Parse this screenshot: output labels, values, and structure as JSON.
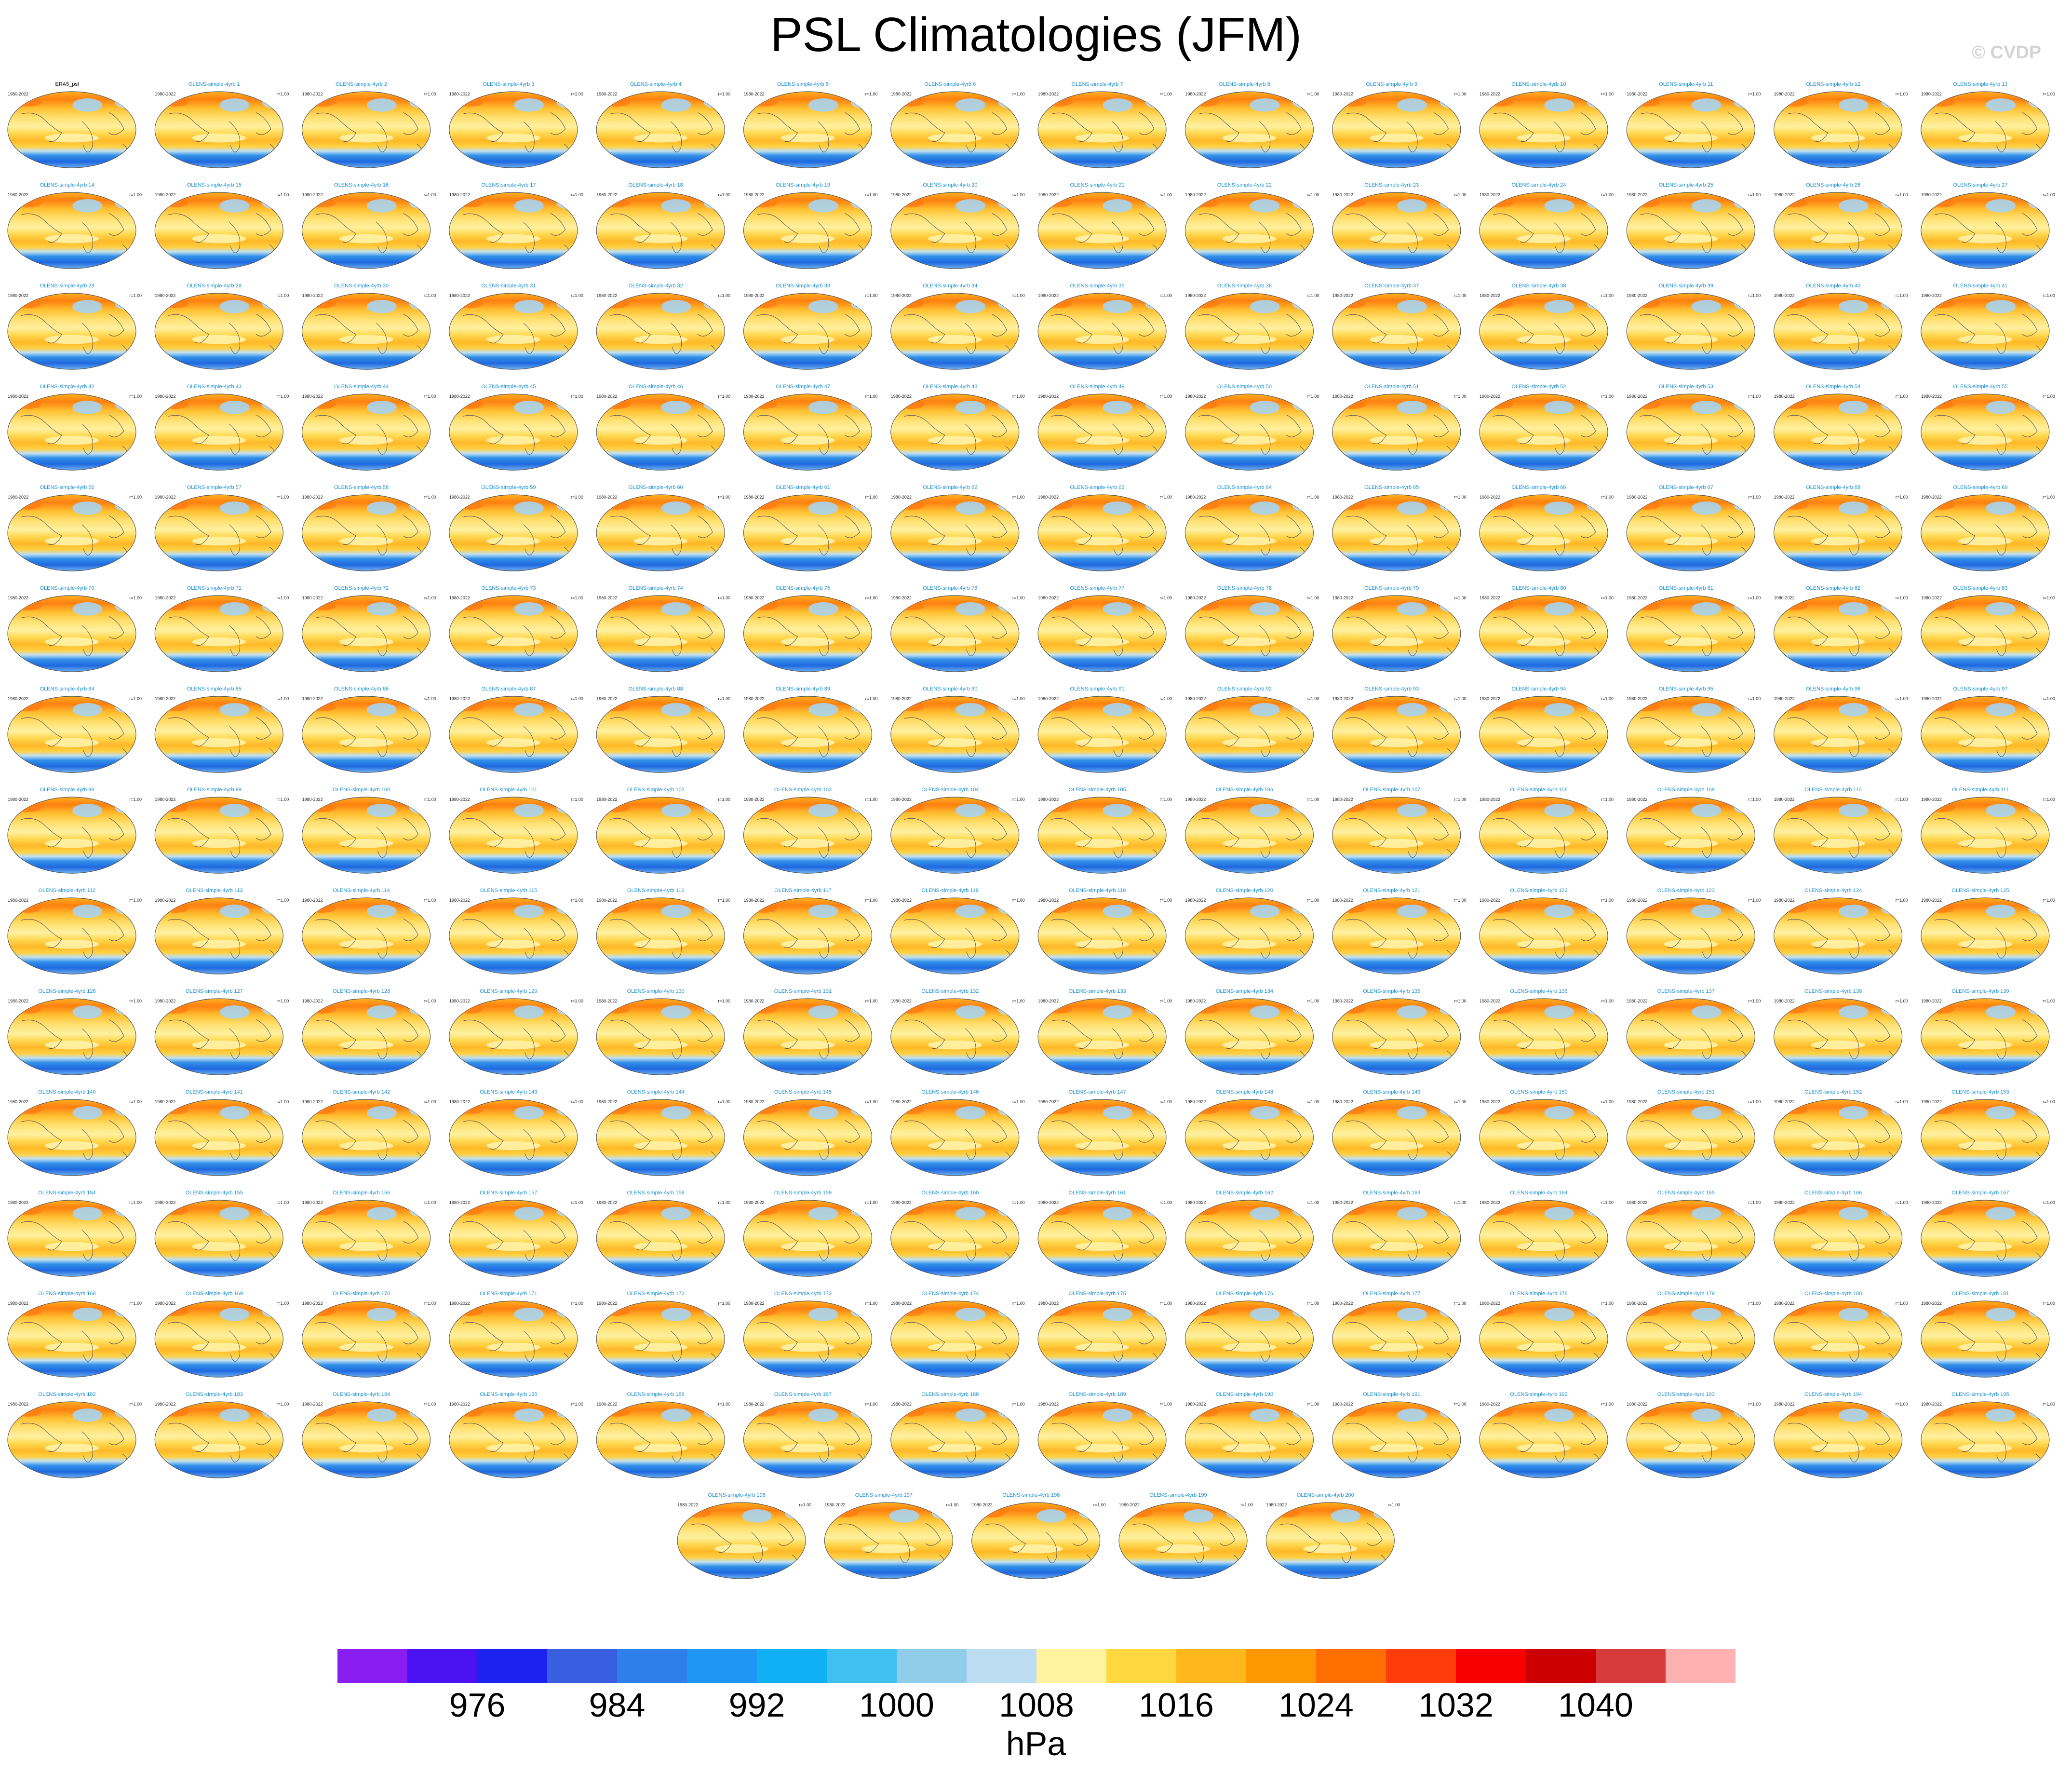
{
  "title": "PSL Climatologies (JFM)",
  "watermark": "© CVDP",
  "panel_years": "1980-2022",
  "panel_r_prefix": "r=",
  "panels": [
    {
      "name": "ERA5_psl",
      "r": ""
    },
    {
      "name": "OLENS-simple-4yrb 1",
      "r": "1.00"
    },
    {
      "name": "OLENS-simple-4yrb 2",
      "r": "1.00"
    },
    {
      "name": "OLENS-simple-4yrb 3",
      "r": "1.00"
    },
    {
      "name": "OLENS-simple-4yrb 4",
      "r": "1.00"
    },
    {
      "name": "OLENS-simple-4yrb 5",
      "r": "1.00"
    },
    {
      "name": "OLENS-simple-4yrb 6",
      "r": "1.00"
    },
    {
      "name": "OLENS-simple-4yrb 7",
      "r": "1.00"
    },
    {
      "name": "OLENS-simple-4yrb 8",
      "r": "1.00"
    },
    {
      "name": "OLENS-simple-4yrb 9",
      "r": "1.00"
    },
    {
      "name": "OLENS-simple-4yrb 10",
      "r": "1.00"
    },
    {
      "name": "OLENS-simple-4yrb 11",
      "r": "1.00"
    },
    {
      "name": "OLENS-simple-4yrb 12",
      "r": "1.00"
    },
    {
      "name": "OLENS-simple-4yrb 13",
      "r": "1.00"
    },
    {
      "name": "OLENS-simple-4yrb 14",
      "r": "1.00"
    },
    {
      "name": "OLENS-simple-4yrb 15",
      "r": "1.00"
    },
    {
      "name": "OLENS-simple-4yrb 16",
      "r": "1.00"
    },
    {
      "name": "OLENS-simple-4yrb 17",
      "r": "1.00"
    },
    {
      "name": "OLENS-simple-4yrb 18",
      "r": "1.00"
    },
    {
      "name": "OLENS-simple-4yrb 19",
      "r": "1.00"
    },
    {
      "name": "OLENS-simple-4yrb 20",
      "r": "1.00"
    },
    {
      "name": "OLENS-simple-4yrb 21",
      "r": "1.00"
    },
    {
      "name": "OLENS-simple-4yrb 22",
      "r": "1.00"
    },
    {
      "name": "OLENS-simple-4yrb 23",
      "r": "1.00"
    },
    {
      "name": "OLENS-simple-4yrb 24",
      "r": "1.00"
    },
    {
      "name": "OLENS-simple-4yrb 25",
      "r": "1.00"
    },
    {
      "name": "OLENS-simple-4yrb 26",
      "r": "1.00"
    },
    {
      "name": "OLENS-simple-4yrb 27",
      "r": "1.00"
    },
    {
      "name": "OLENS-simple-4yrb 28",
      "r": "1.00"
    },
    {
      "name": "OLENS-simple-4yrb 29",
      "r": "1.00"
    },
    {
      "name": "OLENS-simple-4yrb 30",
      "r": "1.00"
    },
    {
      "name": "OLENS-simple-4yrb 31",
      "r": "1.00"
    },
    {
      "name": "OLENS-simple-4yrb 32",
      "r": "1.00"
    },
    {
      "name": "OLENS-simple-4yrb 33",
      "r": "1.00"
    },
    {
      "name": "OLENS-simple-4yrb 34",
      "r": "1.00"
    },
    {
      "name": "OLENS-simple-4yrb 35",
      "r": "1.00"
    },
    {
      "name": "OLENS-simple-4yrb 36",
      "r": "1.00"
    },
    {
      "name": "OLENS-simple-4yrb 37",
      "r": "1.00"
    },
    {
      "name": "OLENS-simple-4yrb 38",
      "r": "1.00"
    },
    {
      "name": "OLENS-simple-4yrb 39",
      "r": "1.00"
    },
    {
      "name": "OLENS-simple-4yrb 40",
      "r": "1.00"
    },
    {
      "name": "OLENS-simple-4yrb 41",
      "r": "1.00"
    },
    {
      "name": "OLENS-simple-4yrb 42",
      "r": "1.00"
    },
    {
      "name": "OLENS-simple-4yrb 43",
      "r": "1.00"
    },
    {
      "name": "OLENS-simple-4yrb 44",
      "r": "1.00"
    },
    {
      "name": "OLENS-simple-4yrb 45",
      "r": "1.00"
    },
    {
      "name": "OLENS-simple-4yrb 46",
      "r": "1.00"
    },
    {
      "name": "OLENS-simple-4yrb 47",
      "r": "1.00"
    },
    {
      "name": "OLENS-simple-4yrb 48",
      "r": "1.00"
    },
    {
      "name": "OLENS-simple-4yrb 49",
      "r": "1.00"
    },
    {
      "name": "OLENS-simple-4yrb 50",
      "r": "1.00"
    },
    {
      "name": "OLENS-simple-4yrb 51",
      "r": "1.00"
    },
    {
      "name": "OLENS-simple-4yrb 52",
      "r": "1.00"
    },
    {
      "name": "OLENS-simple-4yrb 53",
      "r": "1.00"
    },
    {
      "name": "OLENS-simple-4yrb 54",
      "r": "1.00"
    },
    {
      "name": "OLENS-simple-4yrb 55",
      "r": "1.00"
    },
    {
      "name": "OLENS-simple-4yrb 56",
      "r": "1.00"
    },
    {
      "name": "OLENS-simple-4yrb 57",
      "r": "1.00"
    },
    {
      "name": "OLENS-simple-4yrb 58",
      "r": "1.00"
    },
    {
      "name": "OLENS-simple-4yrb 59",
      "r": "1.00"
    },
    {
      "name": "OLENS-simple-4yrb 60",
      "r": "1.00"
    },
    {
      "name": "OLENS-simple-4yrb 61",
      "r": "1.00"
    },
    {
      "name": "OLENS-simple-4yrb 62",
      "r": "1.00"
    },
    {
      "name": "OLENS-simple-4yrb 63",
      "r": "1.00"
    },
    {
      "name": "OLENS-simple-4yrb 64",
      "r": "1.00"
    },
    {
      "name": "OLENS-simple-4yrb 65",
      "r": "1.00"
    },
    {
      "name": "OLENS-simple-4yrb 66",
      "r": "1.00"
    },
    {
      "name": "OLENS-simple-4yrb 67",
      "r": "1.00"
    },
    {
      "name": "OLENS-simple-4yrb 68",
      "r": "1.00"
    },
    {
      "name": "OLENS-simple-4yrb 69",
      "r": "1.00"
    },
    {
      "name": "OLENS-simple-4yrb 70",
      "r": "1.00"
    },
    {
      "name": "OLENS-simple-4yrb 71",
      "r": "1.00"
    },
    {
      "name": "OLENS-simple-4yrb 72",
      "r": "1.00"
    },
    {
      "name": "OLENS-simple-4yrb 73",
      "r": "1.00"
    },
    {
      "name": "OLENS-simple-4yrb 74",
      "r": "1.00"
    },
    {
      "name": "OLENS-simple-4yrb 75",
      "r": "1.00"
    },
    {
      "name": "OLENS-simple-4yrb 76",
      "r": "1.00"
    },
    {
      "name": "OLENS-simple-4yrb 77",
      "r": "1.00"
    },
    {
      "name": "OLENS-simple-4yrb 78",
      "r": "1.00"
    },
    {
      "name": "OLENS-simple-4yrb 79",
      "r": "1.00"
    },
    {
      "name": "OLENS-simple-4yrb 80",
      "r": "1.00"
    },
    {
      "name": "OLENS-simple-4yrb 81",
      "r": "1.00"
    },
    {
      "name": "OLENS-simple-4yrb 82",
      "r": "1.00"
    },
    {
      "name": "OLENS-simple-4yrb 83",
      "r": "1.00"
    },
    {
      "name": "OLENS-simple-4yrb 84",
      "r": "1.00"
    },
    {
      "name": "OLENS-simple-4yrb 85",
      "r": "1.00"
    },
    {
      "name": "OLENS-simple-4yrb 86",
      "r": "1.00"
    },
    {
      "name": "OLENS-simple-4yrb 87",
      "r": "1.00"
    },
    {
      "name": "OLENS-simple-4yrb 88",
      "r": "1.00"
    },
    {
      "name": "OLENS-simple-4yrb 89",
      "r": "1.00"
    },
    {
      "name": "OLENS-simple-4yrb 90",
      "r": "1.00"
    },
    {
      "name": "OLENS-simple-4yrb 91",
      "r": "1.00"
    },
    {
      "name": "OLENS-simple-4yrb 92",
      "r": "1.00"
    },
    {
      "name": "OLENS-simple-4yrb 93",
      "r": "1.00"
    },
    {
      "name": "OLENS-simple-4yrb 94",
      "r": "1.00"
    },
    {
      "name": "OLENS-simple-4yrb 95",
      "r": "1.00"
    },
    {
      "name": "OLENS-simple-4yrb 96",
      "r": "1.00"
    },
    {
      "name": "OLENS-simple-4yrb 97",
      "r": "1.00"
    },
    {
      "name": "OLENS-simple-4yrb 98",
      "r": "1.00"
    },
    {
      "name": "OLENS-simple-4yrb 99",
      "r": "1.00"
    },
    {
      "name": "OLENS-simple-4yrb 100",
      "r": "1.00"
    },
    {
      "name": "OLENS-simple-4yrb 101",
      "r": "1.00"
    },
    {
      "name": "OLENS-simple-4yrb 102",
      "r": "1.00"
    },
    {
      "name": "OLENS-simple-4yrb 103",
      "r": "1.00"
    },
    {
      "name": "OLENS-simple-4yrb 104",
      "r": "1.00"
    },
    {
      "name": "OLENS-simple-4yrb 105",
      "r": "1.00"
    },
    {
      "name": "OLENS-simple-4yrb 106",
      "r": "1.00"
    },
    {
      "name": "OLENS-simple-4yrb 107",
      "r": "1.00"
    },
    {
      "name": "OLENS-simple-4yrb 108",
      "r": "1.00"
    },
    {
      "name": "OLENS-simple-4yrb 109",
      "r": "1.00"
    },
    {
      "name": "OLENS-simple-4yrb 110",
      "r": "1.00"
    },
    {
      "name": "OLENS-simple-4yrb 111",
      "r": "1.00"
    },
    {
      "name": "OLENS-simple-4yrb 112",
      "r": "1.00"
    },
    {
      "name": "OLENS-simple-4yrb 113",
      "r": "1.00"
    },
    {
      "name": "OLENS-simple-4yrb 114",
      "r": "1.00"
    },
    {
      "name": "OLENS-simple-4yrb 115",
      "r": "1.00"
    },
    {
      "name": "OLENS-simple-4yrb 116",
      "r": "1.00"
    },
    {
      "name": "OLENS-simple-4yrb 117",
      "r": "1.00"
    },
    {
      "name": "OLENS-simple-4yrb 118",
      "r": "1.00"
    },
    {
      "name": "OLENS-simple-4yrb 119",
      "r": "1.00"
    },
    {
      "name": "OLENS-simple-4yrb 120",
      "r": "1.00"
    },
    {
      "name": "OLENS-simple-4yrb 121",
      "r": "1.00"
    },
    {
      "name": "OLENS-simple-4yrb 122",
      "r": "1.00"
    },
    {
      "name": "OLENS-simple-4yrb 123",
      "r": "1.00"
    },
    {
      "name": "OLENS-simple-4yrb 124",
      "r": "1.00"
    },
    {
      "name": "OLENS-simple-4yrb 125",
      "r": "1.00"
    },
    {
      "name": "OLENS-simple-4yrb 126",
      "r": "1.00"
    },
    {
      "name": "OLENS-simple-4yrb 127",
      "r": "1.00"
    },
    {
      "name": "OLENS-simple-4yrb 128",
      "r": "1.00"
    },
    {
      "name": "OLENS-simple-4yrb 129",
      "r": "1.00"
    },
    {
      "name": "OLENS-simple-4yrb 130",
      "r": "1.00"
    },
    {
      "name": "OLENS-simple-4yrb 131",
      "r": "1.00"
    },
    {
      "name": "OLENS-simple-4yrb 132",
      "r": "1.00"
    },
    {
      "name": "OLENS-simple-4yrb 133",
      "r": "1.00"
    },
    {
      "name": "OLENS-simple-4yrb 134",
      "r": "1.00"
    },
    {
      "name": "OLENS-simple-4yrb 135",
      "r": "1.00"
    },
    {
      "name": "OLENS-simple-4yrb 136",
      "r": "1.00"
    },
    {
      "name": "OLENS-simple-4yrb 137",
      "r": "1.00"
    },
    {
      "name": "OLENS-simple-4yrb 138",
      "r": "1.00"
    },
    {
      "name": "OLENS-simple-4yrb 139",
      "r": "1.00"
    },
    {
      "name": "OLENS-simple-4yrb 140",
      "r": "1.00"
    },
    {
      "name": "OLENS-simple-4yrb 141",
      "r": "1.00"
    },
    {
      "name": "OLENS-simple-4yrb 142",
      "r": "1.00"
    },
    {
      "name": "OLENS-simple-4yrb 143",
      "r": "1.00"
    },
    {
      "name": "OLENS-simple-4yrb 144",
      "r": "1.00"
    },
    {
      "name": "OLENS-simple-4yrb 145",
      "r": "1.00"
    },
    {
      "name": "OLENS-simple-4yrb 146",
      "r": "1.00"
    },
    {
      "name": "OLENS-simple-4yrb 147",
      "r": "1.00"
    },
    {
      "name": "OLENS-simple-4yrb 148",
      "r": "1.00"
    },
    {
      "name": "OLENS-simple-4yrb 149",
      "r": "1.00"
    },
    {
      "name": "OLENS-simple-4yrb 150",
      "r": "1.00"
    },
    {
      "name": "OLENS-simple-4yrb 151",
      "r": "1.00"
    },
    {
      "name": "OLENS-simple-4yrb 152",
      "r": "1.00"
    },
    {
      "name": "OLENS-simple-4yrb 153",
      "r": "1.00"
    },
    {
      "name": "OLENS-simple-4yrb 154",
      "r": "1.00"
    },
    {
      "name": "OLENS-simple-4yrb 155",
      "r": "1.00"
    },
    {
      "name": "OLENS-simple-4yrb 156",
      "r": "1.00"
    },
    {
      "name": "OLENS-simple-4yrb 157",
      "r": "1.00"
    },
    {
      "name": "OLENS-simple-4yrb 158",
      "r": "1.00"
    },
    {
      "name": "OLENS-simple-4yrb 159",
      "r": "1.00"
    },
    {
      "name": "OLENS-simple-4yrb 160",
      "r": "1.00"
    },
    {
      "name": "OLENS-simple-4yrb 161",
      "r": "1.00"
    },
    {
      "name": "OLENS-simple-4yrb 162",
      "r": "1.00"
    },
    {
      "name": "OLENS-simple-4yrb 163",
      "r": "1.00"
    },
    {
      "name": "OLENS-simple-4yrb 164",
      "r": "1.00"
    },
    {
      "name": "OLENS-simple-4yrb 165",
      "r": "1.00"
    },
    {
      "name": "OLENS-simple-4yrb 166",
      "r": "1.00"
    },
    {
      "name": "OLENS-simple-4yrb 167",
      "r": "1.00"
    },
    {
      "name": "OLENS-simple-4yrb 168",
      "r": "1.00"
    },
    {
      "name": "OLENS-simple-4yrb 169",
      "r": "1.00"
    },
    {
      "name": "OLENS-simple-4yrb 170",
      "r": "1.00"
    },
    {
      "name": "OLENS-simple-4yrb 171",
      "r": "1.00"
    },
    {
      "name": "OLENS-simple-4yrb 172",
      "r": "1.00"
    },
    {
      "name": "OLENS-simple-4yrb 173",
      "r": "1.00"
    },
    {
      "name": "OLENS-simple-4yrb 174",
      "r": "1.00"
    },
    {
      "name": "OLENS-simple-4yrb 175",
      "r": "1.00"
    },
    {
      "name": "OLENS-simple-4yrb 176",
      "r": "1.00"
    },
    {
      "name": "OLENS-simple-4yrb 177",
      "r": "1.00"
    },
    {
      "name": "OLENS-simple-4yrb 178",
      "r": "1.00"
    },
    {
      "name": "OLENS-simple-4yrb 179",
      "r": "1.00"
    },
    {
      "name": "OLENS-simple-4yrb 180",
      "r": "1.00"
    },
    {
      "name": "OLENS-simple-4yrb 181",
      "r": "1.00"
    },
    {
      "name": "OLENS-simple-4yrb 182",
      "r": "1.00"
    },
    {
      "name": "OLENS-simple-4yrb 183",
      "r": "1.00"
    },
    {
      "name": "OLENS-simple-4yrb 184",
      "r": "1.00"
    },
    {
      "name": "OLENS-simple-4yrb 185",
      "r": "1.00"
    },
    {
      "name": "OLENS-simple-4yrb 186",
      "r": "1.00"
    },
    {
      "name": "OLENS-simple-4yrb 187",
      "r": "1.00"
    },
    {
      "name": "OLENS-simple-4yrb 188",
      "r": "1.00"
    },
    {
      "name": "OLENS-simple-4yrb 189",
      "r": "1.00"
    },
    {
      "name": "OLENS-simple-4yrb 190",
      "r": "1.00"
    },
    {
      "name": "OLENS-simple-4yrb 191",
      "r": "1.00"
    },
    {
      "name": "OLENS-simple-4yrb 192",
      "r": "1.00"
    },
    {
      "name": "OLENS-simple-4yrb 193",
      "r": "1.00"
    },
    {
      "name": "OLENS-simple-4yrb 194",
      "r": "1.00"
    },
    {
      "name": "OLENS-simple-4yrb 195",
      "r": "1.00"
    },
    {
      "name": "OLENS-simple-4yrb 196",
      "r": "1.00"
    },
    {
      "name": "OLENS-simple-4yrb 197",
      "r": "1.00"
    },
    {
      "name": "OLENS-simple-4yrb 198",
      "r": "1.00"
    },
    {
      "name": "OLENS-simple-4yrb 199",
      "r": "1.00"
    },
    {
      "name": "OLENS-simple-4yrb 200",
      "r": "1.00"
    }
  ],
  "colorbar": {
    "colors": [
      "#8a1ef0",
      "#4a12f2",
      "#1c22f0",
      "#3a5ee0",
      "#2f7fea",
      "#1f96f4",
      "#0fb0f4",
      "#3ec0f0",
      "#90cdea",
      "#bcdcf2",
      "#fff3a0",
      "#ffd840",
      "#ffb81c",
      "#ff9800",
      "#ff6e00",
      "#ff3c0a",
      "#f80000",
      "#cc0000",
      "#d63a3a",
      "#ffb0b0"
    ],
    "tick_labels": [
      "976",
      "984",
      "992",
      "1000",
      "1008",
      "1016",
      "1024",
      "1032",
      "1040"
    ],
    "unit": "hPa"
  }
}
